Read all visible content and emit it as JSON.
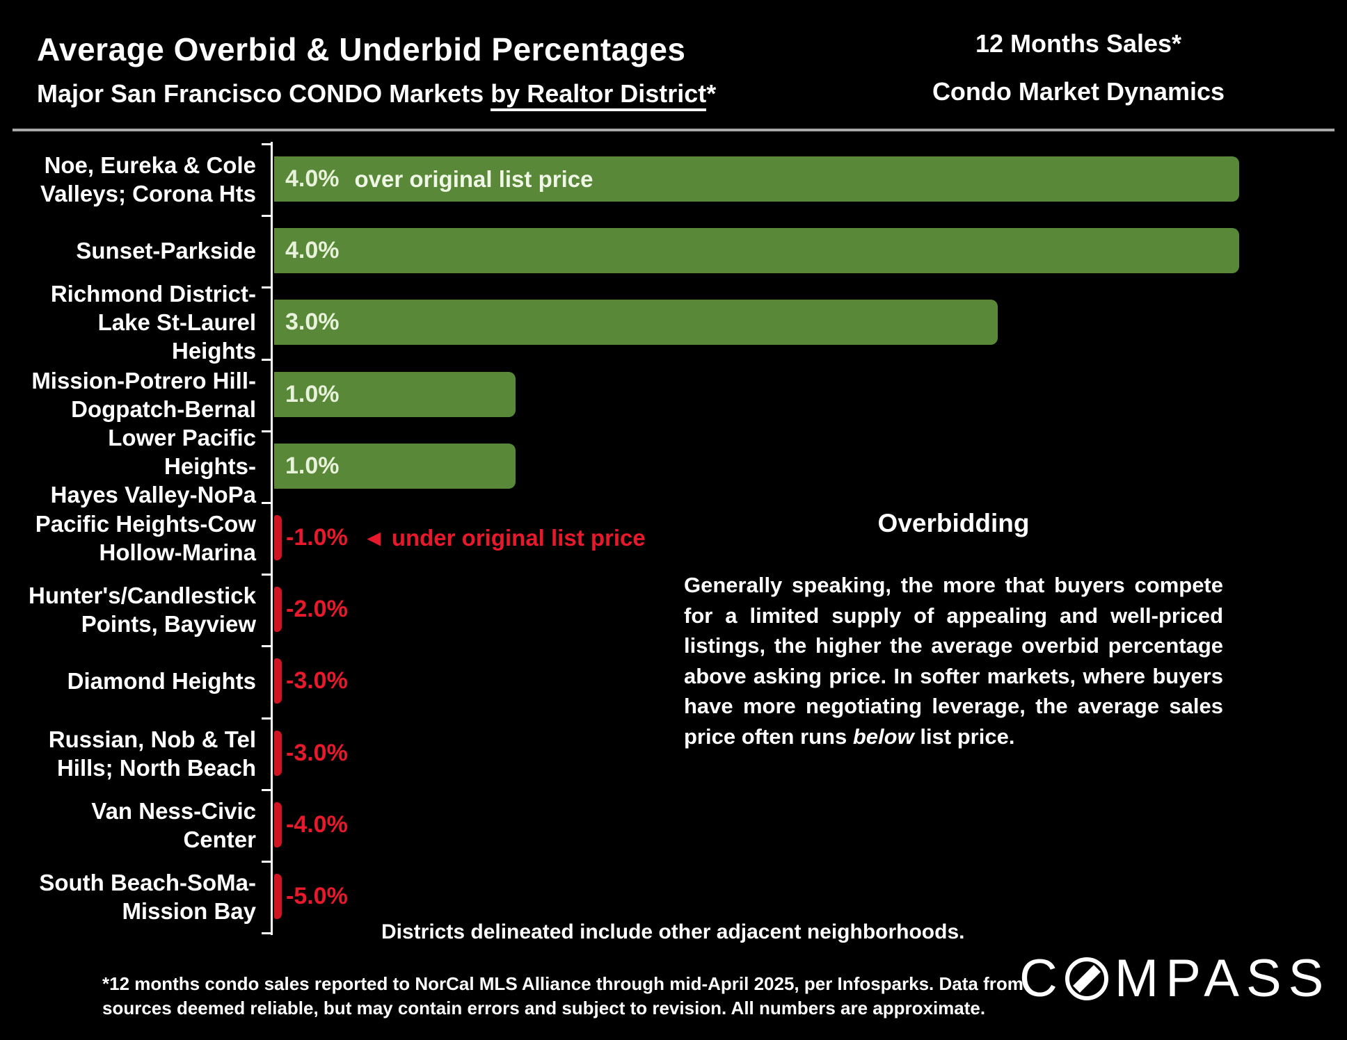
{
  "header": {
    "title": "Average Overbid & Underbid Percentages",
    "subtitle_prefix": "Major San Francisco CONDO Markets ",
    "subtitle_underline": "by Realtor District",
    "subtitle_suffix": "*",
    "right_title": "12 Months Sales*",
    "right_subtitle": "Condo Market Dynamics"
  },
  "chart_data": {
    "type": "bar",
    "orientation": "horizontal",
    "unit": "percent of original list price",
    "categories": [
      "Noe, Eureka & Cole Valleys; Corona Hts",
      "Sunset-Parkside",
      "Richmond District-Lake St-Laurel Heights",
      "Mission-Potrero Hill-Dogpatch-Bernal",
      "Lower Pacific Heights-Hayes Valley-NoPa",
      "Pacific Heights-Cow Hollow-Marina",
      "Hunter's/Candlestick Points, Bayview",
      "Diamond Heights",
      "Russian, Nob & Tel Hills; North Beach",
      "Van Ness-Civic Center",
      "South Beach-SoMa-Mission Bay"
    ],
    "category_lines": [
      [
        "Noe, Eureka & Cole",
        "Valleys; Corona Hts"
      ],
      [
        "Sunset-Parkside"
      ],
      [
        "Richmond District-",
        "Lake St-Laurel Heights"
      ],
      [
        "Mission-Potrero Hill-",
        "Dogpatch-Bernal"
      ],
      [
        "Lower Pacific Heights-",
        "Hayes Valley-NoPa"
      ],
      [
        "Pacific Heights-Cow",
        "Hollow-Marina"
      ],
      [
        "Hunter's/Candlestick",
        "Points, Bayview"
      ],
      [
        "Diamond Heights"
      ],
      [
        "Russian, Nob & Tel",
        "Hills; North Beach"
      ],
      [
        "Van Ness-Civic Center"
      ],
      [
        "South Beach-SoMa-",
        "Mission Bay"
      ]
    ],
    "values": [
      4.0,
      4.0,
      3.0,
      1.0,
      1.0,
      -1.0,
      -2.0,
      -3.0,
      -3.0,
      -4.0,
      -5.0
    ],
    "value_labels": [
      "4.0%",
      "4.0%",
      "3.0%",
      "1.0%",
      "1.0%",
      "-1.0%",
      "-2.0%",
      "-3.0%",
      "-3.0%",
      "-4.0%",
      "-5.0%"
    ],
    "xlim": [
      -5.0,
      4.0
    ],
    "baseline": 0,
    "grid": false,
    "positive_color": "#588838",
    "negative_color": "#d11422",
    "positive_label_color": "#e8f1da",
    "negative_label_color": "#e8192b",
    "annotations": {
      "over": "over original list price",
      "under_arrow": "◄",
      "under": "under original list price"
    }
  },
  "overbidding": {
    "heading": "Overbidding",
    "body_1": "Generally speaking, the more that buyers compete for a limited supply of appealing and well-priced listings, the higher the average overbid percentage above asking price. In softer markets, where buyers have more negotiating leverage, the average sales price often runs ",
    "body_italic": "below",
    "body_2": " list price."
  },
  "notes": {
    "districts": "Districts delineated include other adjacent neighborhoods.",
    "footnote_line1": "*12 months condo sales reported to NorCal MLS Alliance through mid-April 2025, per Infosparks. Data from",
    "footnote_line2": "sources deemed reliable, but may contain errors and subject to revision. All numbers are approximate."
  },
  "logo": {
    "name": "COMPASS",
    "prefix": "C",
    "suffix": "MPASS"
  }
}
